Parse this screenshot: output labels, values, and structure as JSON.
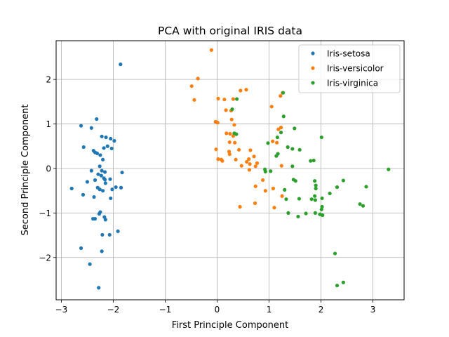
{
  "chart_data": {
    "type": "scatter",
    "title": "PCA with original IRIS data",
    "xlabel": "First Principle Component",
    "ylabel": "Second Principle Component",
    "xlim": [
      -3.1,
      3.6
    ],
    "ylim": [
      -2.95,
      2.87
    ],
    "xticks": [
      -3,
      -2,
      -1,
      0,
      1,
      2,
      3
    ],
    "yticks": [
      -2,
      -1,
      0,
      1,
      2
    ],
    "xtick_labels": [
      "−3",
      "−2",
      "−1",
      "0",
      "1",
      "2",
      "3"
    ],
    "ytick_labels": [
      "−2",
      "−1",
      "0",
      "1",
      "2"
    ],
    "grid": true,
    "legend_position": "top-right",
    "series": [
      {
        "name": "Iris-setosa",
        "color": "#1f77b4",
        "points": [
          [
            -1.86,
            2.34
          ],
          [
            -2.32,
            1.11
          ],
          [
            -2.62,
            0.96
          ],
          [
            -2.42,
            0.91
          ],
          [
            -1.98,
            0.62
          ],
          [
            -2.22,
            0.72
          ],
          [
            -2.14,
            0.7
          ],
          [
            -2.05,
            0.67
          ],
          [
            -2.57,
            0.48
          ],
          [
            -2.18,
            0.46
          ],
          [
            -2.11,
            0.5
          ],
          [
            -2.03,
            0.45
          ],
          [
            -2.38,
            0.4
          ],
          [
            -2.35,
            0.36
          ],
          [
            -2.31,
            0.34
          ],
          [
            -2.25,
            0.3
          ],
          [
            -2.2,
            0.2
          ],
          [
            -2.26,
            0.05
          ],
          [
            -2.22,
            -0.05
          ],
          [
            -2.42,
            -0.05
          ],
          [
            -2.16,
            -0.08
          ],
          [
            -1.83,
            -0.09
          ],
          [
            -2.29,
            -0.13
          ],
          [
            -2.23,
            -0.16
          ],
          [
            -2.18,
            -0.22
          ],
          [
            -2.06,
            -0.24
          ],
          [
            -2.16,
            -0.25
          ],
          [
            -2.35,
            -0.26
          ],
          [
            -2.5,
            -0.3
          ],
          [
            -2.15,
            -0.33
          ],
          [
            -2.8,
            -0.45
          ],
          [
            -2.3,
            -0.43
          ],
          [
            -2.26,
            -0.47
          ],
          [
            -2.2,
            -0.5
          ],
          [
            -2.02,
            -0.47
          ],
          [
            -1.85,
            -0.43
          ],
          [
            -1.95,
            -0.42
          ],
          [
            -2.58,
            -0.59
          ],
          [
            -2.37,
            -0.64
          ],
          [
            -2.05,
            -0.67
          ],
          [
            -2.25,
            -0.98
          ],
          [
            -2.27,
            -1.02
          ],
          [
            -2.17,
            -1.09
          ],
          [
            -2.39,
            -1.13
          ],
          [
            -2.35,
            -1.13
          ],
          [
            -2.15,
            -1.15
          ],
          [
            -2.21,
            -1.49
          ],
          [
            -2.07,
            -1.49
          ],
          [
            -1.91,
            -1.41
          ],
          [
            -2.62,
            -1.79
          ],
          [
            -2.22,
            -1.86
          ],
          [
            -2.45,
            -2.15
          ],
          [
            -2.28,
            -2.68
          ]
        ]
      },
      {
        "name": "Iris-versicolor",
        "color": "#ff7f0e",
        "points": [
          [
            -0.11,
            2.66
          ],
          [
            -0.37,
            2.02
          ],
          [
            -0.49,
            1.85
          ],
          [
            -0.44,
            1.54
          ],
          [
            0.45,
            1.75
          ],
          [
            0.56,
            1.77
          ],
          [
            0.02,
            1.57
          ],
          [
            0.14,
            1.55
          ],
          [
            0.31,
            1.56
          ],
          [
            1.26,
            1.7
          ],
          [
            1.22,
            1.63
          ],
          [
            0.17,
            1.31
          ],
          [
            0.27,
            1.3
          ],
          [
            1.05,
            1.39
          ],
          [
            -0.03,
            1.05
          ],
          [
            0.01,
            1.03
          ],
          [
            0.28,
            1.1
          ],
          [
            0.33,
            0.98
          ],
          [
            0.18,
            0.79
          ],
          [
            0.25,
            0.78
          ],
          [
            0.31,
            0.73
          ],
          [
            1.18,
            0.88
          ],
          [
            1.23,
            0.92
          ],
          [
            0.42,
            0.42
          ],
          [
            0.24,
            0.59
          ],
          [
            0.34,
            0.58
          ],
          [
            0.64,
            0.41
          ],
          [
            0.71,
            0.27
          ],
          [
            -0.02,
            0.43
          ],
          [
            0.23,
            0.38
          ],
          [
            0.24,
            0.32
          ],
          [
            0.08,
            0.2
          ],
          [
            0.1,
            0.17
          ],
          [
            0.36,
            0.2
          ],
          [
            0.61,
            0.21
          ],
          [
            0.77,
            0.12
          ],
          [
            0.57,
            0.15
          ],
          [
            0.47,
            0.06
          ],
          [
            0.74,
            0.05
          ],
          [
            1.07,
            0.61
          ],
          [
            1.15,
            0.58
          ],
          [
            1.24,
            0.06
          ],
          [
            0.62,
            -0.03
          ],
          [
            0.88,
            -0.26
          ],
          [
            0.93,
            -0.5
          ],
          [
            0.74,
            -0.4
          ],
          [
            1.08,
            -0.45
          ],
          [
            1.25,
            -0.62
          ],
          [
            0.73,
            -0.78
          ],
          [
            0.44,
            -0.86
          ],
          [
            1.1,
            -0.88
          ],
          [
            0.02,
            0.21
          ],
          [
            0.63,
            0.1
          ]
        ]
      },
      {
        "name": "Iris-virginica",
        "color": "#2ca02c",
        "points": [
          [
            1.27,
            1.7
          ],
          [
            0.38,
            1.56
          ],
          [
            0.29,
            1.33
          ],
          [
            1.28,
            1.17
          ],
          [
            0.33,
            0.79
          ],
          [
            0.37,
            0.77
          ],
          [
            1.49,
            0.9
          ],
          [
            1.23,
            0.81
          ],
          [
            1.16,
            0.7
          ],
          [
            2.01,
            0.7
          ],
          [
            0.98,
            0.57
          ],
          [
            1.36,
            0.48
          ],
          [
            1.45,
            0.44
          ],
          [
            1.59,
            0.42
          ],
          [
            1.17,
            0.33
          ],
          [
            1.14,
            0.28
          ],
          [
            1.86,
            0.18
          ],
          [
            1.8,
            0.17
          ],
          [
            1.45,
            0.05
          ],
          [
            3.3,
            -0.02
          ],
          [
            0.92,
            -0.02
          ],
          [
            1.03,
            -0.06
          ],
          [
            0.93,
            -0.07
          ],
          [
            1.47,
            -0.25
          ],
          [
            1.51,
            -0.28
          ],
          [
            1.88,
            -0.28
          ],
          [
            2.43,
            -0.27
          ],
          [
            1.9,
            -0.38
          ],
          [
            2.87,
            -0.41
          ],
          [
            2.31,
            -0.42
          ],
          [
            1.9,
            -0.45
          ],
          [
            1.3,
            -0.48
          ],
          [
            2.17,
            -0.56
          ],
          [
            1.88,
            -0.62
          ],
          [
            2.02,
            -0.67
          ],
          [
            1.58,
            -0.68
          ],
          [
            1.33,
            -0.69
          ],
          [
            1.82,
            -0.69
          ],
          [
            1.89,
            -0.71
          ],
          [
            2.75,
            -0.8
          ],
          [
            2.81,
            -0.84
          ],
          [
            2.02,
            -0.86
          ],
          [
            2.01,
            -0.92
          ],
          [
            1.89,
            -1.0
          ],
          [
            1.37,
            -1.0
          ],
          [
            1.71,
            -1.01
          ],
          [
            1.98,
            -1.03
          ],
          [
            2.03,
            -1.05
          ],
          [
            1.56,
            -1.08
          ],
          [
            2.27,
            -1.91
          ],
          [
            2.43,
            -2.56
          ],
          [
            2.31,
            -2.63
          ]
        ]
      }
    ]
  }
}
